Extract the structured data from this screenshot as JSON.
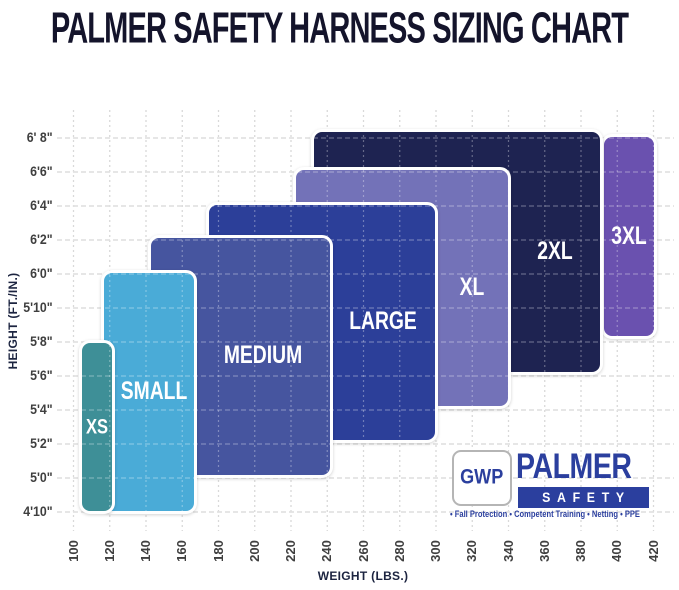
{
  "title": "PALMER SAFETY HARNESS SIZING CHART",
  "chart_data": {
    "type": "range-bar",
    "title": "PALMER SAFETY HARNESS SIZING CHART",
    "xlabel": "WEIGHT (LBS.)",
    "ylabel": "HEIGHT (FT./IN.)",
    "x_ticks": [
      100,
      120,
      140,
      160,
      180,
      200,
      220,
      240,
      260,
      280,
      300,
      320,
      340,
      360,
      380,
      400,
      420
    ],
    "x_range_lbs": [
      100,
      420
    ],
    "grid": true,
    "y_ticks": [
      {
        "label": "6' 8\"",
        "inches": 80
      },
      {
        "label": "6'6\"",
        "inches": 78
      },
      {
        "label": "6'4\"",
        "inches": 76
      },
      {
        "label": "6'2\"",
        "inches": 74
      },
      {
        "label": "6'0\"",
        "inches": 72
      },
      {
        "label": "5'10\"",
        "inches": 70
      },
      {
        "label": "5'8\"",
        "inches": 68
      },
      {
        "label": "5'6\"",
        "inches": 66
      },
      {
        "label": "5'4\"",
        "inches": 64
      },
      {
        "label": "5'2\"",
        "inches": 62
      },
      {
        "label": "5'0\"",
        "inches": 60
      },
      {
        "label": "4'10\"",
        "inches": 58
      }
    ],
    "sizes": [
      {
        "label": "XS",
        "color": "#3e8f97",
        "weight_lbs": [
          104,
          122
        ],
        "height_in": [
          58.0,
          68.0
        ],
        "height_range": "4'10\"-5'8\""
      },
      {
        "label": "SMALL",
        "color": "#4aabd7",
        "weight_lbs": [
          116,
          167
        ],
        "height_in": [
          58.0,
          72.1
        ],
        "height_range": "4'10\"-6'0\""
      },
      {
        "label": "MEDIUM",
        "color": "#46559f",
        "weight_lbs": [
          142,
          242
        ],
        "height_in": [
          60.1,
          74.2
        ],
        "height_range": "5'0\"-6'2\""
      },
      {
        "label": "LARGE",
        "color": "#2c3f99",
        "weight_lbs": [
          174,
          300
        ],
        "height_in": [
          62.2,
          76.1
        ],
        "height_range": "5'2\"-6'4\""
      },
      {
        "label": "XL",
        "color": "#7372b8",
        "weight_lbs": [
          222,
          340
        ],
        "height_in": [
          64.2,
          78.2
        ],
        "height_range": "5'4\"-6'6\""
      },
      {
        "label": "2XL",
        "color": "#1e2351",
        "weight_lbs": [
          232,
          391
        ],
        "height_in": [
          66.2,
          80.4
        ],
        "height_range": "5'6\"-6'8\""
      },
      {
        "label": "3XL",
        "color": "#6a51af",
        "weight_lbs": [
          392,
          421
        ],
        "height_in": [
          68.3,
          80.1
        ],
        "height_range": "5'8\"-6'8\""
      }
    ]
  },
  "logo": {
    "gwp": "GWP",
    "brand_top": "PALMER",
    "brand_bottom": "SAFETY",
    "tagline": "• Fall Protection • Competent Training • Netting • PPE",
    "brand_color": "#2b3f9e"
  }
}
